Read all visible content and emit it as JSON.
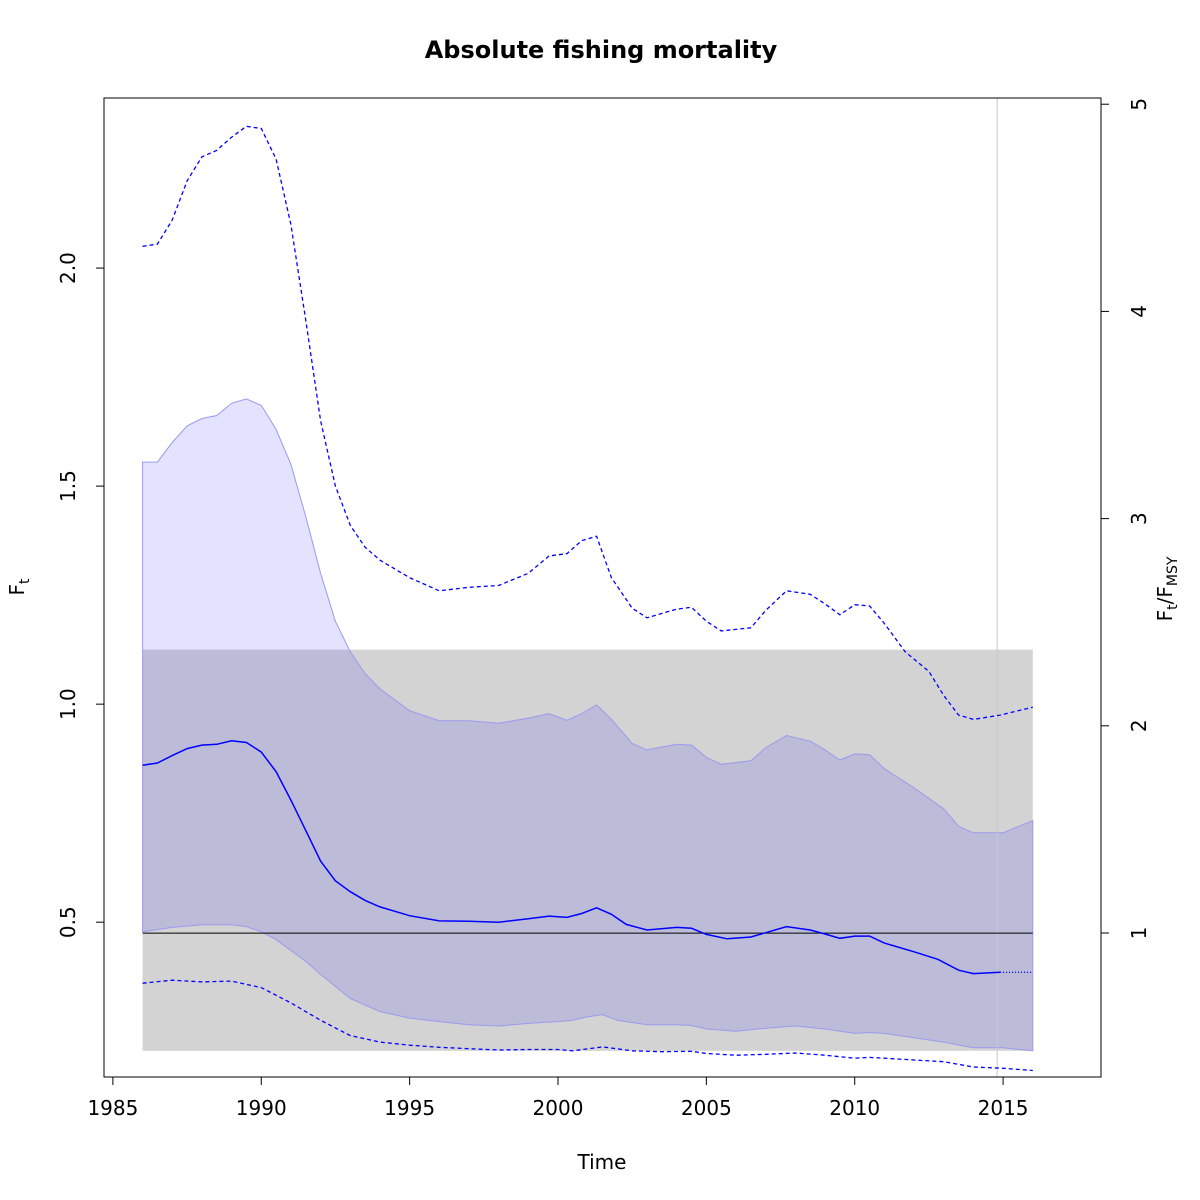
{
  "chart_data": {
    "type": "line",
    "title": "Absolute fishing mortality",
    "xlabel": "Time",
    "ylabel": "F",
    "ylabel_subscript": "t",
    "y2label_num": "F",
    "y2label_num_sub": "t",
    "y2label_sep": "/",
    "y2label_den": "F",
    "y2label_den_sub": "MSY",
    "xlim": [
      1984.7,
      2018.3
    ],
    "ylim": [
      0.145,
      2.39
    ],
    "y2lim": [
      0.305,
      5.03
    ],
    "x_ticks": [
      1985,
      1990,
      1995,
      2000,
      2005,
      2010,
      2015
    ],
    "y_ticks": [
      0.5,
      1.0,
      1.5,
      2.0
    ],
    "y_tick_labels": [
      "0.5",
      "1.0",
      "1.5",
      "2.0"
    ],
    "y2_ticks": [
      1,
      2,
      3,
      4,
      5
    ],
    "grid": false,
    "last_data_year": 2014.8,
    "fmsy_reference": 0.475,
    "fmsy_band": {
      "x": [
        1986.0,
        2016.0
      ],
      "lower": 0.205,
      "upper": 1.125
    },
    "series": [
      {
        "role": "estimate",
        "x": [
          1986.0,
          1986.5,
          1987.0,
          1987.5,
          1988.0,
          1988.5,
          1989.0,
          1989.5,
          1990.0,
          1990.5,
          1991.0,
          1991.5,
          1992.0,
          1992.5,
          1993.0,
          1993.5,
          1994.0,
          1995.0,
          1996.0,
          1997.0,
          1998.0,
          1999.0,
          1999.7,
          2000.3,
          2000.8,
          2001.3,
          2001.8,
          2002.3,
          2003.0,
          2004.0,
          2004.5,
          2005.0,
          2005.7,
          2006.5,
          2007.0,
          2007.7,
          2008.5,
          2009.0,
          2009.5,
          2010.0,
          2010.5,
          2011.0,
          2012.0,
          2012.8,
          2013.5,
          2014.0,
          2014.9
        ],
        "y": [
          0.86,
          0.865,
          0.882,
          0.898,
          0.906,
          0.908,
          0.916,
          0.912,
          0.89,
          0.845,
          0.78,
          0.71,
          0.64,
          0.595,
          0.57,
          0.55,
          0.535,
          0.515,
          0.503,
          0.502,
          0.5,
          0.508,
          0.514,
          0.511,
          0.52,
          0.533,
          0.518,
          0.495,
          0.482,
          0.488,
          0.486,
          0.472,
          0.462,
          0.466,
          0.476,
          0.49,
          0.482,
          0.473,
          0.463,
          0.468,
          0.468,
          0.452,
          0.432,
          0.415,
          0.39,
          0.382,
          0.385
        ]
      },
      {
        "role": "prediction",
        "x": [
          2014.9,
          2016.0
        ],
        "y": [
          0.385,
          0.385
        ]
      },
      {
        "role": "ci_upper",
        "x": [
          1986.0,
          1986.5,
          1987.0,
          1987.5,
          1988.0,
          1988.5,
          1989.0,
          1989.5,
          1990.0,
          1990.5,
          1991.0,
          1991.5,
          1992.0,
          1992.5,
          1993.0,
          1993.5,
          1994.0,
          1995.0,
          1996.0,
          1997.0,
          1998.0,
          1999.0,
          1999.7,
          2000.3,
          2000.8,
          2001.3,
          2001.8,
          2002.5,
          2003.0,
          2004.0,
          2004.5,
          2005.0,
          2005.5,
          2006.5,
          2007.0,
          2007.7,
          2008.5,
          2009.0,
          2009.5,
          2010.0,
          2010.5,
          2011.0,
          2011.7,
          2012.5,
          2013.0,
          2013.5,
          2014.0,
          2014.9,
          2016.0
        ],
        "y": [
          2.05,
          2.055,
          2.11,
          2.2,
          2.255,
          2.27,
          2.3,
          2.325,
          2.32,
          2.25,
          2.1,
          1.88,
          1.65,
          1.5,
          1.41,
          1.36,
          1.33,
          1.29,
          1.26,
          1.268,
          1.272,
          1.3,
          1.34,
          1.345,
          1.375,
          1.385,
          1.29,
          1.22,
          1.198,
          1.218,
          1.222,
          1.19,
          1.168,
          1.175,
          1.215,
          1.26,
          1.252,
          1.23,
          1.205,
          1.228,
          1.225,
          1.185,
          1.12,
          1.075,
          1.02,
          0.975,
          0.965,
          0.975,
          0.993
        ]
      },
      {
        "role": "ci_lower",
        "x": [
          1986.0,
          1987.0,
          1988.0,
          1989.0,
          1990.0,
          1991.0,
          1992.0,
          1993.0,
          1994.0,
          1995.0,
          1996.0,
          1997.0,
          1998.0,
          1999.0,
          2000.0,
          2000.5,
          2001.5,
          2002.5,
          2003.5,
          2004.5,
          2005.0,
          2006.0,
          2007.0,
          2008.0,
          2009.0,
          2010.0,
          2010.5,
          2011.0,
          2012.0,
          2013.0,
          2014.0,
          2015.0,
          2016.0
        ],
        "y": [
          0.36,
          0.367,
          0.363,
          0.365,
          0.35,
          0.315,
          0.275,
          0.24,
          0.225,
          0.218,
          0.213,
          0.21,
          0.207,
          0.208,
          0.208,
          0.205,
          0.214,
          0.205,
          0.203,
          0.204,
          0.199,
          0.195,
          0.197,
          0.2,
          0.195,
          0.188,
          0.19,
          0.188,
          0.184,
          0.18,
          0.168,
          0.165,
          0.16
        ]
      },
      {
        "role": "rel_ci_upper",
        "x": [
          1986.0,
          1986.5,
          1987.0,
          1987.5,
          1988.0,
          1988.5,
          1989.0,
          1989.5,
          1990.0,
          1990.5,
          1991.0,
          1991.5,
          1992.0,
          1992.5,
          1993.0,
          1993.5,
          1994.0,
          1995.0,
          1996.0,
          1997.0,
          1998.0,
          1999.0,
          1999.7,
          2000.3,
          2000.8,
          2001.3,
          2001.8,
          2002.5,
          2003.0,
          2004.0,
          2004.5,
          2005.0,
          2005.5,
          2006.5,
          2007.0,
          2007.7,
          2008.5,
          2009.0,
          2009.5,
          2010.0,
          2010.5,
          2011.0,
          2012.0,
          2013.0,
          2013.5,
          2014.0,
          2015.0,
          2016.0
        ],
        "y": [
          1.555,
          1.555,
          1.6,
          1.638,
          1.655,
          1.662,
          1.69,
          1.7,
          1.685,
          1.63,
          1.55,
          1.43,
          1.3,
          1.19,
          1.12,
          1.07,
          1.035,
          0.985,
          0.962,
          0.962,
          0.956,
          0.968,
          0.978,
          0.963,
          0.978,
          0.998,
          0.965,
          0.91,
          0.895,
          0.908,
          0.906,
          0.878,
          0.862,
          0.87,
          0.9,
          0.928,
          0.915,
          0.895,
          0.872,
          0.886,
          0.884,
          0.852,
          0.808,
          0.76,
          0.72,
          0.705,
          0.705,
          0.733
        ]
      },
      {
        "role": "rel_ci_lower",
        "x": [
          1986.0,
          1987.0,
          1988.0,
          1989.0,
          1989.5,
          1990.0,
          1990.5,
          1991.0,
          1991.5,
          1992.0,
          1993.0,
          1994.0,
          1995.0,
          1996.0,
          1997.0,
          1998.0,
          1999.0,
          2000.0,
          2000.5,
          2001.0,
          2001.5,
          2002.0,
          2003.0,
          2004.0,
          2004.5,
          2005.0,
          2006.0,
          2007.0,
          2008.0,
          2009.0,
          2010.0,
          2010.5,
          2011.0,
          2012.0,
          2013.0,
          2014.0,
          2015.0,
          2016.0
        ],
        "y": [
          0.478,
          0.488,
          0.494,
          0.494,
          0.49,
          0.478,
          0.46,
          0.435,
          0.41,
          0.38,
          0.325,
          0.295,
          0.28,
          0.272,
          0.265,
          0.262,
          0.268,
          0.272,
          0.275,
          0.283,
          0.288,
          0.275,
          0.265,
          0.265,
          0.263,
          0.255,
          0.25,
          0.257,
          0.262,
          0.255,
          0.245,
          0.247,
          0.245,
          0.235,
          0.225,
          0.212,
          0.212,
          0.205
        ]
      }
    ],
    "colors": {
      "estimate": "#0000ff",
      "ci_fill": "#e3e3ff",
      "ci_fill_overlap": "#bcbcd9",
      "ci_edge": "#9a9aee",
      "fmsy_band": "#d3d3d3",
      "fmsy_line": "#000000",
      "last_year_line": "#c8c8c8"
    }
  }
}
